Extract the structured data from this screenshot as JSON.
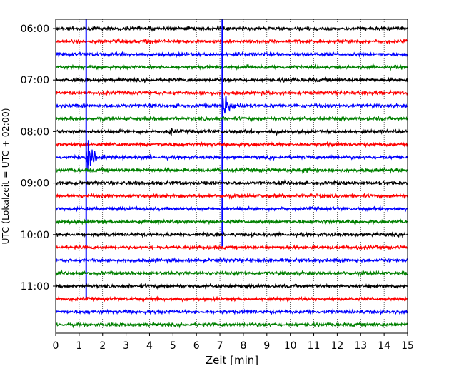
{
  "chart_data": {
    "type": "line",
    "title": "",
    "xlabel": "Zeit  [min]",
    "ylabel": "UTC (Lokalzeit = UTC + 02:00)",
    "xlim": [
      0,
      15
    ],
    "x_ticks": [
      "0",
      "1",
      "2",
      "3",
      "4",
      "5",
      "6",
      "7",
      "8",
      "9",
      "10",
      "11",
      "12",
      "13",
      "14",
      "15"
    ],
    "y_ticks": [
      "06:00",
      "07:00",
      "08:00",
      "09:00",
      "10:00",
      "11:00"
    ],
    "grid": "vertical dotted",
    "row_interval_minutes": 15,
    "rows": [
      "06:00",
      "06:15",
      "06:30",
      "06:45",
      "07:00",
      "07:15",
      "07:30",
      "07:45",
      "08:00",
      "08:15",
      "08:30",
      "08:45",
      "09:00",
      "09:15",
      "09:30",
      "09:45",
      "10:00",
      "10:15",
      "10:30",
      "10:45",
      "11:00",
      "11:15",
      "11:30",
      "11:45"
    ],
    "color_cycle": [
      "#000000",
      "#ff0000",
      "#0000ff",
      "#008000"
    ],
    "events": [
      {
        "row": "08:30",
        "minute": 1.3,
        "description": "strong earthquake arrival",
        "amplitude": "large"
      },
      {
        "row": "07:30",
        "minute": 7.1,
        "description": "strong earthquake arrival",
        "amplitude": "large"
      },
      {
        "row": "08:00",
        "minute": 4.9,
        "amplitude": "small"
      },
      {
        "row": "08:00",
        "minute": 9.3,
        "amplitude": "small"
      },
      {
        "row": "08:45",
        "minute": 10.6,
        "amplitude": "small"
      },
      {
        "row": "06:45",
        "minute": 8.2,
        "amplitude": "small"
      },
      {
        "row": "06:15",
        "minute": 3.9,
        "amplitude": "small"
      }
    ]
  }
}
